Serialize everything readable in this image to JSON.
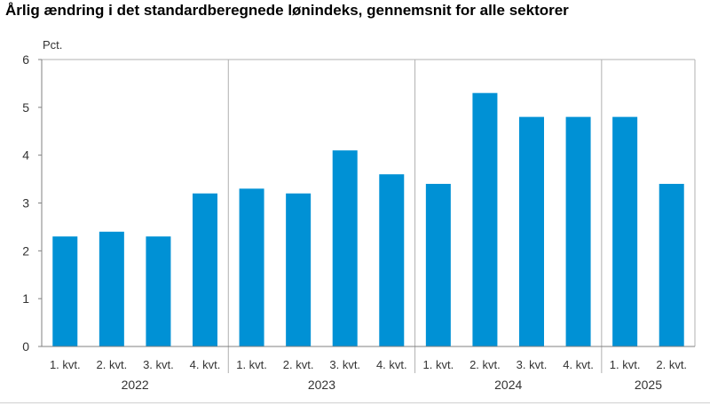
{
  "chart_data": {
    "type": "bar",
    "title": "Årlig ændring i det standardberegnede lønindeks, gennemsnit for alle sektorer",
    "ylabel": "Pct.",
    "xlabel": "",
    "ylim": [
      0,
      6
    ],
    "yticks": [
      0,
      1,
      2,
      3,
      4,
      5,
      6
    ],
    "grid": false,
    "categories": [
      "1. kvt.",
      "2. kvt.",
      "3. kvt.",
      "4. kvt.",
      "1. kvt.",
      "2. kvt.",
      "3. kvt.",
      "4. kvt.",
      "1. kvt.",
      "2. kvt.",
      "3. kvt.",
      "4. kvt.",
      "1. kvt.",
      "2. kvt."
    ],
    "values": [
      2.3,
      2.4,
      2.3,
      3.2,
      3.3,
      3.2,
      4.1,
      3.6,
      3.4,
      5.3,
      4.8,
      4.8,
      4.8,
      3.4
    ],
    "groups": [
      {
        "label": "2022",
        "count": 4
      },
      {
        "label": "2023",
        "count": 4
      },
      {
        "label": "2024",
        "count": 4
      },
      {
        "label": "2025",
        "count": 2
      }
    ],
    "bar_color": "#0091d5"
  }
}
